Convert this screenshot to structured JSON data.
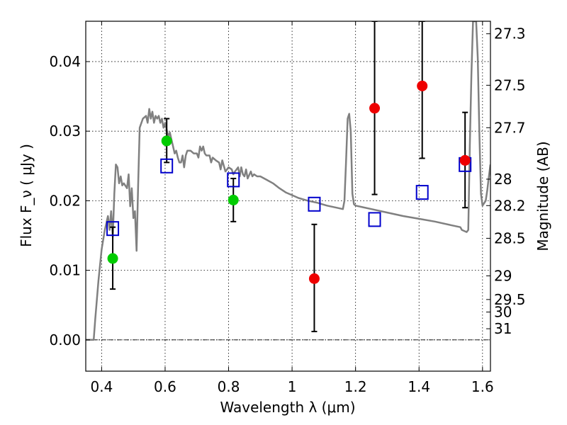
{
  "chart_data": {
    "type": "scatter",
    "title": "",
    "xlabel": "Wavelength  λ (μm)",
    "ylabel_left": "Flux  F_ν ( μJy )",
    "ylabel_right": "Magnitude (AB)",
    "xlim": [
      0.35,
      1.625
    ],
    "ylim": [
      -0.0045,
      0.0458
    ],
    "x_ticks": [
      0.4,
      0.6,
      0.8,
      1.0,
      1.2,
      1.4,
      1.6
    ],
    "x_tick_labels": [
      "0.4",
      "0.6",
      "0.8",
      "1",
      "1.2",
      "1.4",
      "1.6"
    ],
    "y_ticks": [
      0.0,
      0.01,
      0.02,
      0.03,
      0.04
    ],
    "y_tick_labels": [
      "0.00",
      "0.01",
      "0.02",
      "0.03",
      "0.04"
    ],
    "right_ticks": [
      {
        "label": "27.3",
        "flux": 0.044
      },
      {
        "label": "27.5",
        "flux": 0.0366
      },
      {
        "label": "27.7",
        "flux": 0.0305
      },
      {
        "label": "28",
        "flux": 0.0231
      },
      {
        "label": "28.2",
        "flux": 0.0193
      },
      {
        "label": "28.5",
        "flux": 0.0146
      },
      {
        "label": "29",
        "flux": 0.0092
      },
      {
        "label": "29.5",
        "flux": 0.0058
      },
      {
        "label": "30",
        "flux": 0.004
      },
      {
        "label": "31",
        "flux": 0.0016
      }
    ],
    "grid": true,
    "zero_line": true,
    "sed_model": {
      "name": "",
      "color": "#808080",
      "points": [
        [
          0.35,
          0.0
        ],
        [
          0.375,
          0.0
        ],
        [
          0.38,
          0.003
        ],
        [
          0.39,
          0.0085
        ],
        [
          0.4,
          0.013
        ],
        [
          0.41,
          0.0158
        ],
        [
          0.42,
          0.0178
        ],
        [
          0.425,
          0.0158
        ],
        [
          0.43,
          0.0185
        ],
        [
          0.435,
          0.0148
        ],
        [
          0.44,
          0.021
        ],
        [
          0.445,
          0.0252
        ],
        [
          0.45,
          0.0248
        ],
        [
          0.455,
          0.0225
        ],
        [
          0.46,
          0.0235
        ],
        [
          0.465,
          0.0222
        ],
        [
          0.47,
          0.0225
        ],
        [
          0.48,
          0.0218
        ],
        [
          0.485,
          0.0238
        ],
        [
          0.49,
          0.0192
        ],
        [
          0.495,
          0.0218
        ],
        [
          0.5,
          0.0175
        ],
        [
          0.505,
          0.0185
        ],
        [
          0.51,
          0.0128
        ],
        [
          0.515,
          0.0222
        ],
        [
          0.52,
          0.0305
        ],
        [
          0.53,
          0.0318
        ],
        [
          0.54,
          0.0322
        ],
        [
          0.545,
          0.0312
        ],
        [
          0.55,
          0.0332
        ],
        [
          0.555,
          0.0318
        ],
        [
          0.56,
          0.0328
        ],
        [
          0.565,
          0.0312
        ],
        [
          0.57,
          0.0322
        ],
        [
          0.575,
          0.0318
        ],
        [
          0.58,
          0.0322
        ],
        [
          0.585,
          0.0312
        ],
        [
          0.59,
          0.0318
        ],
        [
          0.595,
          0.0305
        ],
        [
          0.6,
          0.0312
        ],
        [
          0.605,
          0.0302
        ],
        [
          0.61,
          0.0292
        ],
        [
          0.615,
          0.0298
        ],
        [
          0.62,
          0.0288
        ],
        [
          0.625,
          0.0278
        ],
        [
          0.63,
          0.0268
        ],
        [
          0.635,
          0.0272
        ],
        [
          0.64,
          0.0262
        ],
        [
          0.645,
          0.0255
        ],
        [
          0.65,
          0.0255
        ],
        [
          0.655,
          0.0265
        ],
        [
          0.66,
          0.0248
        ],
        [
          0.665,
          0.0265
        ],
        [
          0.67,
          0.0272
        ],
        [
          0.68,
          0.0272
        ],
        [
          0.69,
          0.0268
        ],
        [
          0.7,
          0.0268
        ],
        [
          0.705,
          0.0262
        ],
        [
          0.71,
          0.0278
        ],
        [
          0.715,
          0.0272
        ],
        [
          0.72,
          0.0278
        ],
        [
          0.725,
          0.0268
        ],
        [
          0.73,
          0.0265
        ],
        [
          0.74,
          0.0265
        ],
        [
          0.745,
          0.0255
        ],
        [
          0.75,
          0.0262
        ],
        [
          0.76,
          0.0258
        ],
        [
          0.77,
          0.0255
        ],
        [
          0.775,
          0.0245
        ],
        [
          0.78,
          0.0258
        ],
        [
          0.79,
          0.0242
        ],
        [
          0.8,
          0.0248
        ],
        [
          0.81,
          0.0245
        ],
        [
          0.815,
          0.0238
        ],
        [
          0.82,
          0.0242
        ],
        [
          0.83,
          0.0248
        ],
        [
          0.835,
          0.0235
        ],
        [
          0.84,
          0.0248
        ],
        [
          0.845,
          0.0238
        ],
        [
          0.85,
          0.0235
        ],
        [
          0.855,
          0.0245
        ],
        [
          0.86,
          0.0232
        ],
        [
          0.87,
          0.0242
        ],
        [
          0.875,
          0.0235
        ],
        [
          0.88,
          0.0238
        ],
        [
          0.89,
          0.0235
        ],
        [
          0.9,
          0.0235
        ],
        [
          0.92,
          0.023
        ],
        [
          0.94,
          0.0225
        ],
        [
          0.96,
          0.0218
        ],
        [
          0.98,
          0.0212
        ],
        [
          1.0,
          0.0208
        ],
        [
          1.02,
          0.0204
        ],
        [
          1.05,
          0.02
        ],
        [
          1.08,
          0.0197
        ],
        [
          1.11,
          0.0193
        ],
        [
          1.14,
          0.019
        ],
        [
          1.16,
          0.0188
        ],
        [
          1.165,
          0.02
        ],
        [
          1.17,
          0.0255
        ],
        [
          1.175,
          0.0318
        ],
        [
          1.18,
          0.0325
        ],
        [
          1.185,
          0.03
        ],
        [
          1.19,
          0.021
        ],
        [
          1.195,
          0.0195
        ],
        [
          1.2,
          0.0193
        ],
        [
          1.25,
          0.0188
        ],
        [
          1.3,
          0.0183
        ],
        [
          1.35,
          0.0178
        ],
        [
          1.4,
          0.0174
        ],
        [
          1.45,
          0.017
        ],
        [
          1.5,
          0.0165
        ],
        [
          1.53,
          0.0162
        ],
        [
          1.535,
          0.0158
        ],
        [
          1.545,
          0.0156
        ],
        [
          1.55,
          0.0155
        ],
        [
          1.555,
          0.0158
        ],
        [
          1.56,
          0.028
        ],
        [
          1.565,
          0.038
        ],
        [
          1.57,
          0.0458
        ],
        [
          1.58,
          0.0458
        ],
        [
          1.585,
          0.0405
        ],
        [
          1.59,
          0.03
        ],
        [
          1.595,
          0.021
        ],
        [
          1.6,
          0.0193
        ],
        [
          1.61,
          0.02
        ],
        [
          1.615,
          0.0215
        ],
        [
          1.62,
          0.0235
        ],
        [
          1.625,
          0.0252
        ]
      ]
    },
    "model_points": {
      "name": "",
      "color": "#0000cc",
      "marker": "open-square",
      "points": [
        [
          0.435,
          0.016
        ],
        [
          0.605,
          0.025
        ],
        [
          0.815,
          0.023
        ],
        [
          1.07,
          0.0195
        ],
        [
          1.26,
          0.0173
        ],
        [
          1.41,
          0.0212
        ],
        [
          1.545,
          0.0252
        ]
      ]
    },
    "detections": {
      "name": "",
      "color": "#00cc00",
      "marker": "filled-circle",
      "points": [
        {
          "x": 0.435,
          "y": 0.0117,
          "yerr_low": 0.0073,
          "yerr_high": 0.0162
        },
        {
          "x": 0.605,
          "y": 0.0286,
          "yerr_low": 0.0255,
          "yerr_high": 0.0318
        },
        {
          "x": 0.815,
          "y": 0.0201,
          "yerr_low": 0.017,
          "yerr_high": 0.0232
        }
      ]
    },
    "nondetections": {
      "name": "",
      "color": "#ee0000",
      "marker": "filled-circle",
      "points": [
        {
          "x": 1.07,
          "y": 0.0088,
          "yerr_low": 0.0012,
          "yerr_high": 0.0166
        },
        {
          "x": 1.26,
          "y": 0.0333,
          "yerr_low": 0.0209,
          "yerr_high": 0.0458
        },
        {
          "x": 1.41,
          "y": 0.0365,
          "yerr_low": 0.0261,
          "yerr_high": 0.0458
        },
        {
          "x": 1.545,
          "y": 0.0258,
          "yerr_low": 0.019,
          "yerr_high": 0.0327
        }
      ]
    }
  }
}
